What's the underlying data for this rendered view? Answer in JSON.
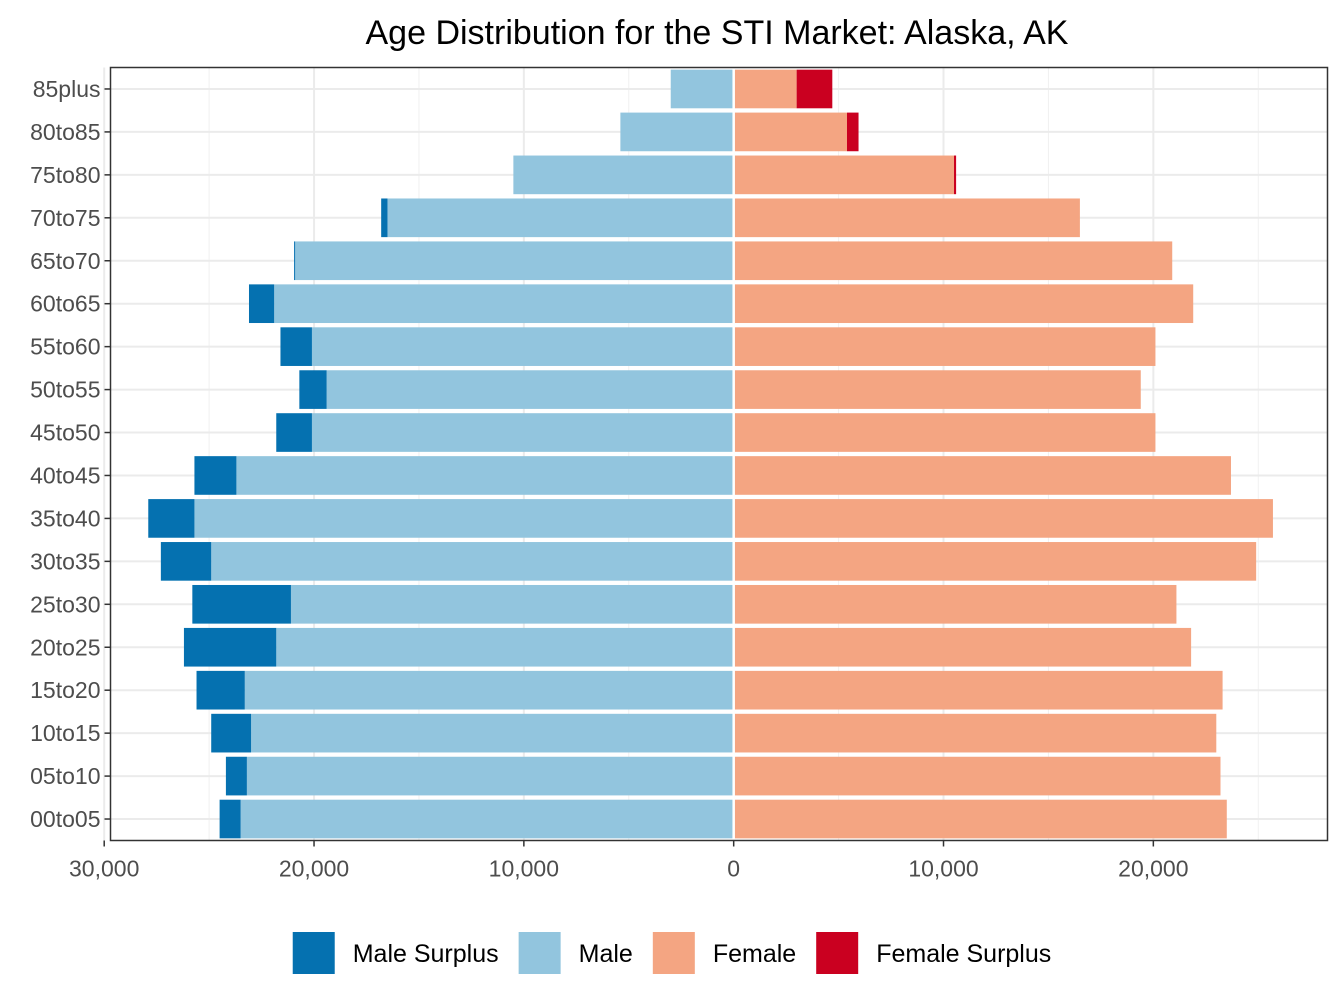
{
  "chart_data": {
    "type": "bar",
    "orientation": "horizontal",
    "title": "Age Distribution for the STI Market: Alaska, AK",
    "xlabel": "",
    "ylabel": "",
    "categories": [
      "85plus",
      "80to85",
      "75to80",
      "70to75",
      "65to70",
      "60to65",
      "55to60",
      "50to55",
      "45to50",
      "40to45",
      "35to40",
      "30to35",
      "25to30",
      "20to25",
      "15to20",
      "10to15",
      "05to10",
      "00to05"
    ],
    "series": [
      {
        "name": "Male",
        "side": "left",
        "color": "#92c5de",
        "values": [
          3000,
          5400,
          10500,
          16500,
          20900,
          21900,
          20100,
          19400,
          20100,
          23700,
          25700,
          24900,
          21100,
          21800,
          23300,
          23000,
          23200,
          23500
        ]
      },
      {
        "name": "Male Surplus",
        "side": "left",
        "color": "#0571b0",
        "values": [
          0,
          0,
          0,
          300,
          50,
          1200,
          1500,
          1300,
          1700,
          2000,
          2200,
          2400,
          4700,
          4400,
          2300,
          1900,
          1000,
          1000
        ]
      },
      {
        "name": "Female",
        "side": "right",
        "color": "#f4a582",
        "values": [
          3000,
          5400,
          10500,
          16500,
          20900,
          21900,
          20100,
          19400,
          20100,
          23700,
          25700,
          24900,
          21100,
          21800,
          23300,
          23000,
          23200,
          23500
        ]
      },
      {
        "name": "Female Surplus",
        "side": "right",
        "color": "#ca0020",
        "values": [
          1700,
          550,
          100,
          0,
          0,
          0,
          0,
          0,
          0,
          0,
          0,
          0,
          0,
          0,
          0,
          0,
          0,
          0
        ]
      }
    ],
    "xlim": [
      -29700,
      28300
    ],
    "xticks": [
      -30000,
      -20000,
      -10000,
      0,
      10000,
      20000
    ],
    "xtick_labels": [
      "30,000",
      "20,000",
      "10,000",
      "0",
      "10,000",
      "20,000"
    ],
    "grid": true,
    "legend": {
      "position": "bottom",
      "entries": [
        {
          "label": "Male Surplus",
          "color": "#0571b0"
        },
        {
          "label": "Male",
          "color": "#92c5de"
        },
        {
          "label": "Female",
          "color": "#f4a582"
        },
        {
          "label": "Female Surplus",
          "color": "#ca0020"
        }
      ]
    }
  }
}
